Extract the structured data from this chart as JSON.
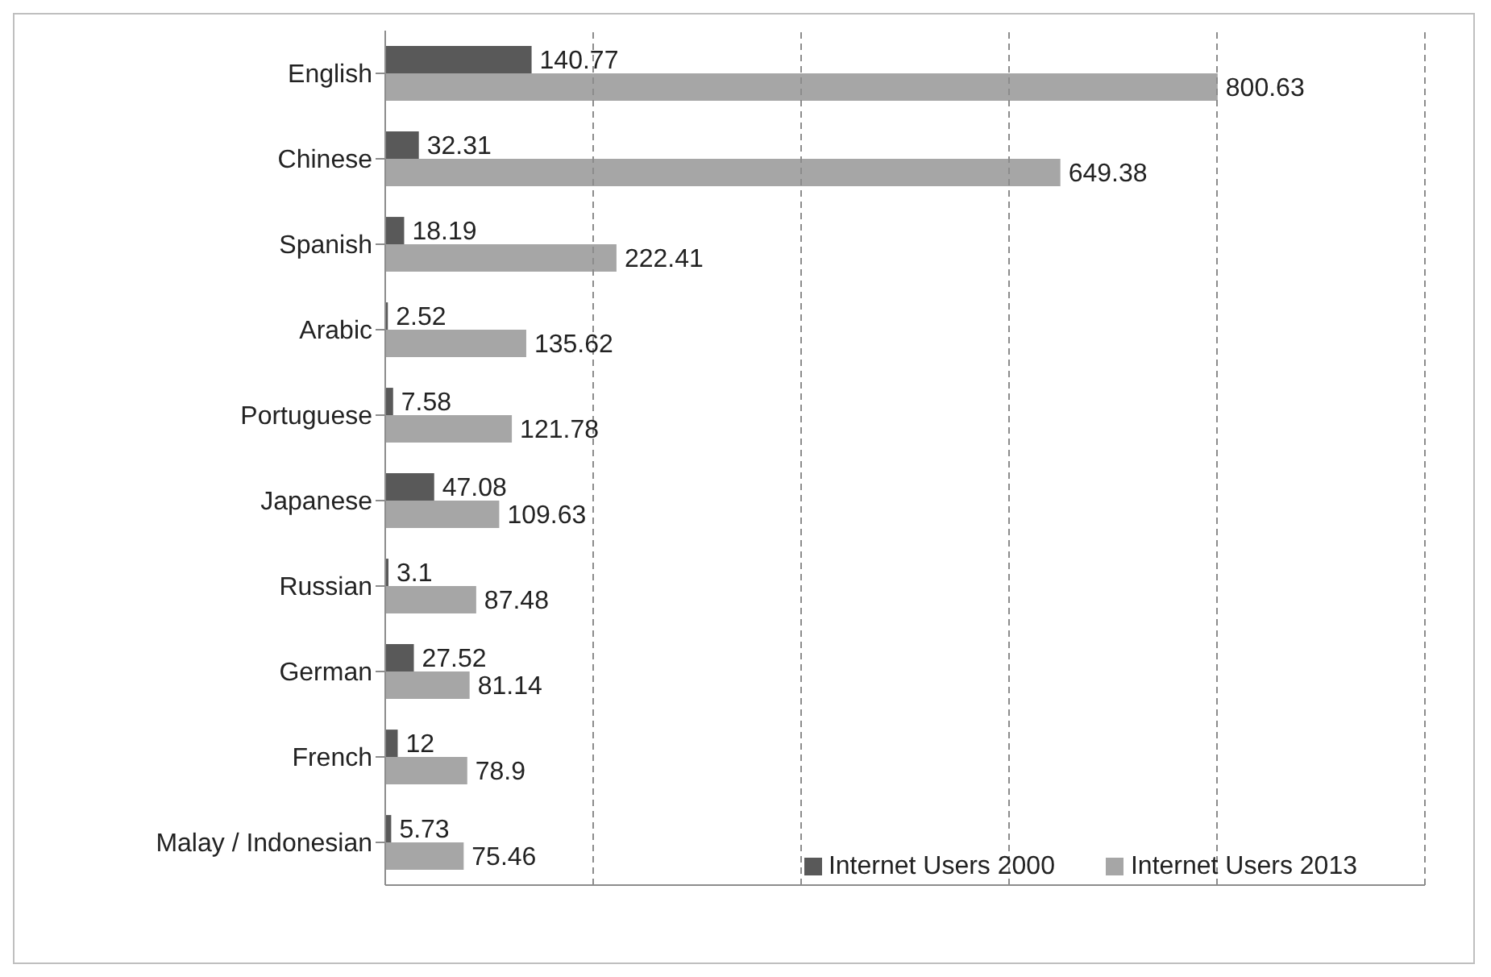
{
  "chart_data": {
    "type": "bar",
    "orientation": "horizontal",
    "categories": [
      "English",
      "Chinese",
      "Spanish",
      "Arabic",
      "Portuguese",
      "Japanese",
      "Russian",
      "German",
      "French",
      "Malay / Indonesian"
    ],
    "series": [
      {
        "name": "Internet Users 2000",
        "color": "#595959",
        "values": [
          140.77,
          32.31,
          18.19,
          2.52,
          7.58,
          47.08,
          3.1,
          27.52,
          12,
          5.73
        ]
      },
      {
        "name": "Internet Users 2013",
        "color": "#a6a6a6",
        "values": [
          800.63,
          649.38,
          222.41,
          135.62,
          121.78,
          109.63,
          87.48,
          81.14,
          78.9,
          75.46
        ]
      }
    ],
    "xlim": [
      0,
      1000
    ],
    "xticks": [
      {
        "value": 0,
        "label": null
      },
      {
        "value": 200,
        "label": null
      },
      {
        "value": 400,
        "label": null
      },
      {
        "value": 600,
        "label": null
      },
      {
        "value": 800,
        "label": null
      },
      {
        "value": 1000,
        "label": null
      }
    ],
    "grid": "x",
    "tick_labels": "y",
    "data_labels": true,
    "legend": "bottom right"
  }
}
